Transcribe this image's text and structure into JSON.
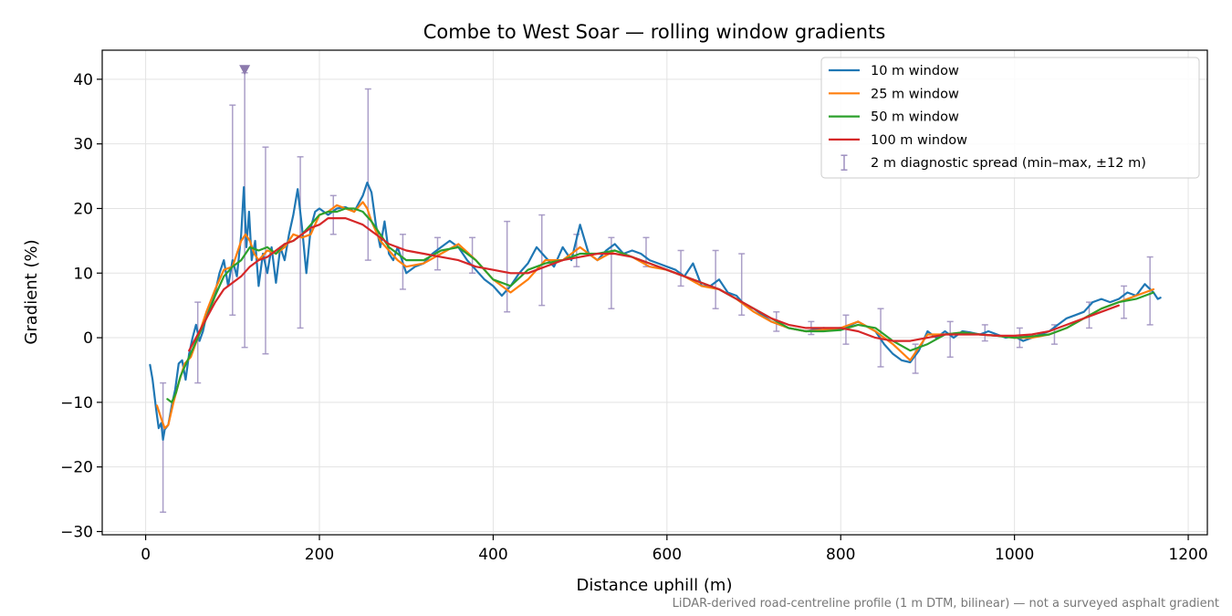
{
  "chart_data": {
    "type": "line",
    "title": "Combe to West Soar — rolling window gradients",
    "xlabel": "Distance uphill (m)",
    "ylabel": "Gradient (%)",
    "xlim": [
      -50,
      1222
    ],
    "ylim": [
      -30.5,
      44.5
    ],
    "xticks": [
      0,
      200,
      400,
      600,
      800,
      1000,
      1200
    ],
    "yticks": [
      -30,
      -20,
      -10,
      0,
      10,
      20,
      30,
      40
    ],
    "grid": true,
    "legend_position": "upper-right",
    "footnote": "LiDAR-derived road-centreline profile (1 m DTM, bilinear) — not a surveyed asphalt gradient",
    "series": [
      {
        "name": "10 m window",
        "color": "#1f77b4",
        "x": [
          5,
          8,
          12,
          15,
          18,
          20,
          22,
          26,
          30,
          34,
          38,
          42,
          46,
          50,
          54,
          58,
          62,
          66,
          70,
          75,
          80,
          85,
          90,
          95,
          100,
          105,
          110,
          113,
          116,
          119,
          122,
          126,
          130,
          135,
          140,
          145,
          150,
          155,
          160,
          165,
          170,
          175,
          180,
          185,
          190,
          195,
          200,
          210,
          220,
          230,
          240,
          250,
          255,
          260,
          265,
          270,
          275,
          280,
          285,
          290,
          295,
          300,
          310,
          320,
          330,
          340,
          350,
          360,
          370,
          380,
          390,
          400,
          410,
          420,
          430,
          440,
          450,
          460,
          470,
          480,
          490,
          500,
          510,
          520,
          530,
          540,
          550,
          560,
          570,
          580,
          590,
          600,
          610,
          620,
          630,
          640,
          650,
          660,
          670,
          680,
          690,
          700,
          710,
          720,
          740,
          760,
          780,
          800,
          820,
          840,
          850,
          860,
          870,
          880,
          890,
          900,
          910,
          920,
          930,
          940,
          950,
          960,
          970,
          980,
          990,
          1000,
          1010,
          1020,
          1030,
          1040,
          1050,
          1060,
          1070,
          1080,
          1090,
          1100,
          1110,
          1120,
          1130,
          1140,
          1150,
          1160,
          1165,
          1168
        ],
        "y": [
          -4.2,
          -6.5,
          -11,
          -14,
          -13.2,
          -15.8,
          -14.2,
          -13.5,
          -10.5,
          -8,
          -4,
          -3.5,
          -6.5,
          -2.5,
          0,
          2,
          -0.5,
          1,
          3.5,
          5,
          7,
          10,
          12,
          8,
          12,
          9.5,
          16,
          23.3,
          14,
          19.5,
          12,
          15,
          8,
          13,
          10,
          14,
          8.5,
          14,
          12,
          16,
          19,
          23,
          17,
          10,
          17,
          19.5,
          20,
          19,
          20,
          20.2,
          19.5,
          22,
          24,
          22.5,
          17.5,
          14,
          18,
          13,
          12,
          14,
          12,
          10,
          11,
          11.5,
          13,
          14,
          15,
          14,
          12,
          10.5,
          9,
          8,
          6.5,
          8,
          10,
          11.5,
          14,
          12.5,
          11,
          14,
          12,
          17.5,
          13,
          12,
          13.5,
          14.5,
          13,
          13.5,
          13,
          12,
          11.5,
          11,
          10.5,
          9.5,
          11.5,
          8,
          8,
          9,
          7,
          6.5,
          5,
          4.5,
          3.5,
          2.5,
          1.5,
          1,
          1.5,
          1.2,
          2.5,
          1,
          -1,
          -2.5,
          -3.5,
          -3.8,
          -2,
          1,
          0,
          1,
          0,
          1,
          0.8,
          0.5,
          1,
          0.5,
          0,
          0.2,
          -0.5,
          0,
          0.5,
          1,
          2,
          3,
          3.5,
          4,
          5.5,
          6,
          5.5,
          6,
          7,
          6.5,
          8.3,
          7,
          6,
          6.2
        ]
      },
      {
        "name": "25 m window",
        "color": "#ff7f0e",
        "x": [
          13,
          18,
          22,
          26,
          32,
          38,
          45,
          52,
          60,
          70,
          80,
          90,
          100,
          110,
          115,
          120,
          125,
          130,
          140,
          150,
          160,
          170,
          180,
          190,
          200,
          210,
          220,
          230,
          240,
          250,
          255,
          260,
          270,
          280,
          290,
          300,
          320,
          340,
          360,
          380,
          400,
          420,
          440,
          460,
          480,
          500,
          520,
          540,
          560,
          580,
          600,
          620,
          640,
          660,
          680,
          700,
          720,
          740,
          760,
          780,
          800,
          820,
          840,
          860,
          880,
          900,
          920,
          940,
          960,
          980,
          1000,
          1020,
          1040,
          1060,
          1080,
          1100,
          1120,
          1140,
          1160
        ],
        "y": [
          -10.5,
          -12.5,
          -14,
          -13.5,
          -10,
          -7,
          -4,
          -3,
          0,
          4,
          7.5,
          10.5,
          11,
          15,
          16,
          15,
          13,
          12,
          13.5,
          13,
          14,
          16,
          15.5,
          16,
          19,
          19.5,
          20.5,
          20,
          19.5,
          21,
          20,
          18,
          15,
          13.5,
          12,
          11,
          11.5,
          13,
          14.5,
          12,
          9,
          7,
          9,
          12,
          12,
          14,
          12,
          13.5,
          12.5,
          11,
          10.5,
          9.5,
          8,
          7.5,
          6,
          4,
          2.5,
          1.5,
          1,
          1.2,
          1.5,
          2.5,
          1,
          -1,
          -3.5,
          0.5,
          0.5,
          0.8,
          0.5,
          0.3,
          0,
          0,
          0.5,
          1.5,
          3,
          4.5,
          5.5,
          6.5,
          7.5
        ]
      },
      {
        "name": "50 m window",
        "color": "#2ca02c",
        "x": [
          25,
          30,
          35,
          40,
          45,
          50,
          55,
          60,
          70,
          80,
          90,
          100,
          110,
          120,
          130,
          140,
          150,
          160,
          170,
          180,
          190,
          200,
          210,
          220,
          230,
          240,
          250,
          260,
          270,
          280,
          290,
          300,
          320,
          340,
          360,
          380,
          400,
          420,
          440,
          460,
          480,
          500,
          520,
          540,
          560,
          580,
          600,
          620,
          640,
          660,
          680,
          700,
          720,
          740,
          760,
          780,
          800,
          820,
          840,
          860,
          880,
          900,
          920,
          940,
          960,
          980,
          1000,
          1020,
          1040,
          1060,
          1080,
          1100,
          1120,
          1140,
          1160
        ],
        "y": [
          -9.5,
          -10,
          -8.5,
          -6,
          -4.5,
          -3,
          -1.5,
          0,
          3,
          6.5,
          9.5,
          11,
          12,
          14,
          13.5,
          14,
          13,
          14.5,
          15,
          16,
          17.5,
          19,
          19.5,
          19.5,
          20,
          20,
          19.5,
          18,
          16,
          14,
          13,
          12,
          12,
          13.5,
          14,
          12,
          9,
          8,
          10.5,
          11.5,
          12,
          13,
          13,
          13.5,
          12.5,
          11.5,
          10.5,
          9.5,
          8.5,
          7.5,
          6,
          4.5,
          3,
          1.5,
          1,
          1,
          1.2,
          2,
          1.5,
          -0.5,
          -2,
          -1,
          0.5,
          0.8,
          0.5,
          0.3,
          0,
          0.2,
          0.5,
          1.5,
          3,
          4.5,
          5.5,
          6,
          7
        ]
      },
      {
        "name": "100 m window",
        "color": "#d62728",
        "x": [
          50,
          60,
          70,
          80,
          90,
          100,
          110,
          120,
          130,
          140,
          150,
          160,
          170,
          180,
          190,
          200,
          210,
          220,
          230,
          240,
          250,
          260,
          270,
          280,
          300,
          320,
          340,
          360,
          380,
          400,
          420,
          440,
          460,
          480,
          500,
          520,
          540,
          560,
          580,
          600,
          620,
          640,
          660,
          680,
          700,
          720,
          740,
          760,
          780,
          800,
          820,
          840,
          860,
          880,
          900,
          920,
          940,
          960,
          980,
          1000,
          1020,
          1040,
          1060,
          1080,
          1100,
          1120
        ],
        "y": [
          -2,
          0.5,
          3,
          5.5,
          7.5,
          8.5,
          9.5,
          11,
          12,
          12.5,
          13.5,
          14.5,
          15,
          16,
          17,
          17.5,
          18.5,
          18.5,
          18.5,
          18,
          17.5,
          16.5,
          15.5,
          14.5,
          13.5,
          13,
          12.5,
          12,
          11,
          10.5,
          10,
          10,
          11,
          12,
          12.5,
          13,
          13,
          12.5,
          11.5,
          10.5,
          9.5,
          8.5,
          7.5,
          6,
          4.5,
          3,
          2,
          1.5,
          1.5,
          1.5,
          1,
          0,
          -0.5,
          -0.5,
          0,
          0.5,
          0.5,
          0.5,
          0.3,
          0.3,
          0.5,
          1,
          2,
          3,
          4,
          5
        ]
      }
    ],
    "diagnostic": {
      "name": "2 m diagnostic spread (min–max, ±12 m)",
      "color": "#9d8fbf",
      "bars": [
        {
          "x": 20,
          "min": -27,
          "max": -7
        },
        {
          "x": 60,
          "min": -7,
          "max": 5.5
        },
        {
          "x": 100,
          "min": 3.5,
          "max": 36
        },
        {
          "x": 114,
          "min": -1.5,
          "max": 41
        },
        {
          "x": 138,
          "min": -2.5,
          "max": 29.5
        },
        {
          "x": 178,
          "min": 1.5,
          "max": 28
        },
        {
          "x": 216,
          "min": 16,
          "max": 22
        },
        {
          "x": 256,
          "min": 12,
          "max": 38.5
        },
        {
          "x": 296,
          "min": 7.5,
          "max": 16
        },
        {
          "x": 336,
          "min": 10.5,
          "max": 15.5
        },
        {
          "x": 376,
          "min": 10,
          "max": 15.5
        },
        {
          "x": 416,
          "min": 4,
          "max": 18
        },
        {
          "x": 456,
          "min": 5,
          "max": 19
        },
        {
          "x": 496,
          "min": 11,
          "max": 16
        },
        {
          "x": 536,
          "min": 4.5,
          "max": 15.5
        },
        {
          "x": 576,
          "min": 11,
          "max": 15.5
        },
        {
          "x": 616,
          "min": 8,
          "max": 13.5
        },
        {
          "x": 656,
          "min": 4.5,
          "max": 13.5
        },
        {
          "x": 686,
          "min": 3.5,
          "max": 13
        },
        {
          "x": 726,
          "min": 1,
          "max": 4
        },
        {
          "x": 766,
          "min": 0.5,
          "max": 2.5
        },
        {
          "x": 806,
          "min": -1,
          "max": 3.5
        },
        {
          "x": 846,
          "min": -4.5,
          "max": 4.5
        },
        {
          "x": 886,
          "min": -5.5,
          "max": -1
        },
        {
          "x": 926,
          "min": -3,
          "max": 2.5
        },
        {
          "x": 966,
          "min": -0.5,
          "max": 2
        },
        {
          "x": 1006,
          "min": -1.5,
          "max": 1.5
        },
        {
          "x": 1046,
          "min": -1,
          "max": 2
        },
        {
          "x": 1086,
          "min": 1.5,
          "max": 5.5
        },
        {
          "x": 1126,
          "min": 3,
          "max": 8
        },
        {
          "x": 1156,
          "min": 2,
          "max": 12.5
        }
      ],
      "clipped_marker": {
        "x": 114,
        "y": 41.5
      }
    }
  }
}
